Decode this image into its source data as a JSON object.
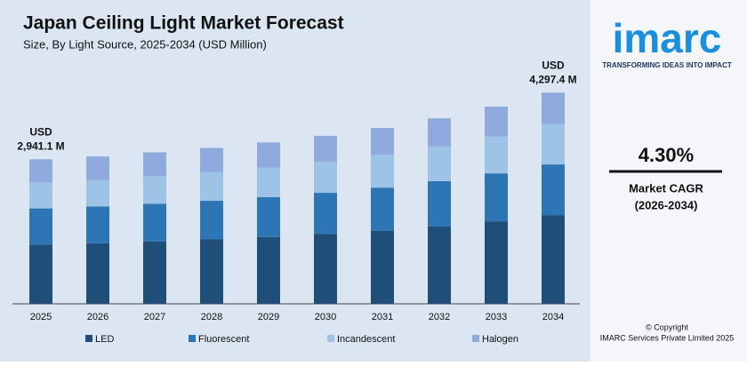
{
  "chart_data": {
    "type": "stacked_bar",
    "title": "Japan Ceiling Light Market Forecast",
    "subtitle": "Size, By Light Source, 2025-2034 (USD Million)",
    "categories": [
      "2025",
      "2026",
      "2027",
      "2028",
      "2029",
      "2030",
      "2031",
      "2032",
      "2033",
      "2034"
    ],
    "series": [
      {
        "name": "LED",
        "color": "#1f4e79",
        "values": [
          1206,
          1232,
          1270,
          1310,
          1360,
          1418,
          1488,
          1574,
          1678,
          1805
        ]
      },
      {
        "name": "Fluorescent",
        "color": "#2e75b6",
        "values": [
          735,
          748,
          766,
          786,
          810,
          840,
          876,
          920,
          975,
          1031
        ]
      },
      {
        "name": "Incandescent",
        "color": "#9dc3e6",
        "values": [
          529,
          542,
          560,
          580,
          604,
          632,
          666,
          706,
          754,
          816
        ]
      },
      {
        "name": "Halogen",
        "color": "#8faadc",
        "values": [
          471,
          476,
          486,
          496,
          510,
          527,
          548,
          574,
          605,
          645
        ]
      }
    ],
    "start_label": [
      "USD",
      "2,941.1 M"
    ],
    "end_label": [
      "USD",
      "4,297.4 M"
    ],
    "ylim": [
      0,
      4500
    ],
    "legend": "bottom"
  },
  "sidebar": {
    "logo": "imarc",
    "tagline": "TRANSFORMING IDEAS INTO IMPACT",
    "cagr": "4.30%",
    "cagr_label": "Market CAGR",
    "cagr_period": "(2026-2034)",
    "copyright": [
      "© Copyright",
      "IMARC Services Private Limited 2025"
    ]
  }
}
